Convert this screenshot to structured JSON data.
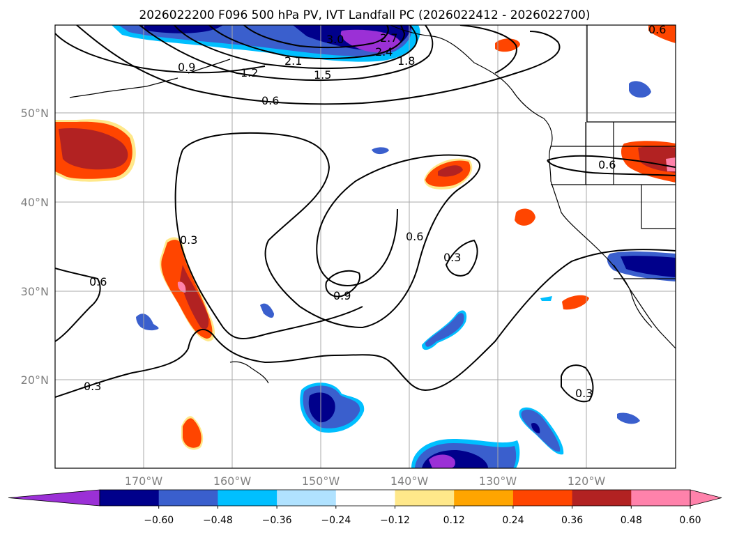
{
  "title": "2026022200 F096 500 hPa PV, IVT Landfall PC (2026022412 - 2026022700)",
  "lat_labels": [
    "50°N",
    "40°N",
    "30°N",
    "20°N"
  ],
  "lon_labels": [
    "170°W",
    "160°W",
    "150°W",
    "140°W",
    "130°W",
    "120°W"
  ],
  "colorbar": {
    "labels": [
      "−0.60",
      "−0.48",
      "−0.36",
      "−0.24",
      "−0.12",
      "0.12",
      "0.24",
      "0.36",
      "0.48",
      "0.60"
    ],
    "colors": [
      "#9b30d6",
      "#00008b",
      "#3a5fcd",
      "#00bfff",
      "#b0e2ff",
      "#ffffff",
      "#ffe88a",
      "#ffa500",
      "#ff4500",
      "#b22222",
      "#ff82ab",
      "#ff82ab"
    ]
  },
  "contour_labels": [
    "0.9",
    "1.2",
    "2.1",
    "1.5",
    "1.8",
    "2.4",
    "3.0",
    "2.7",
    "0.6",
    "0.6",
    "0.3",
    "0.6",
    "0.6",
    "0.3",
    "0.9",
    "0.3",
    "0.3",
    "0.6"
  ]
}
